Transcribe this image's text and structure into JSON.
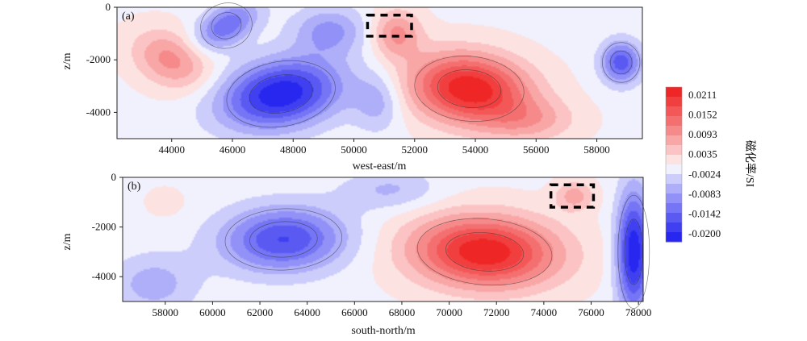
{
  "chart_data": [
    {
      "type": "heatmap",
      "panel_label": "(a)",
      "xlabel": "west-east/m",
      "ylabel": "z/m",
      "xlim": [
        42200,
        59500
      ],
      "ylim": [
        -5000,
        0
      ],
      "x_ticks": [
        "44000",
        "46000",
        "48000",
        "50000",
        "52000",
        "54000",
        "56000",
        "58000"
      ],
      "y_ticks": [
        "0",
        "-2000",
        "-4000"
      ],
      "anomalies": [
        {
          "x": 47600,
          "z": -3300,
          "value": -0.02,
          "sx": 1900,
          "sz": 1300,
          "tilt": 0.55
        },
        {
          "x": 45800,
          "z": -700,
          "value": -0.012,
          "sx": 900,
          "sz": 900,
          "tilt": 0.9
        },
        {
          "x": 49200,
          "z": -900,
          "value": -0.008,
          "sx": 1200,
          "sz": 900,
          "tilt": 0.0
        },
        {
          "x": 50800,
          "z": -3600,
          "value": -0.006,
          "sx": 800,
          "sz": 1100,
          "tilt": 0.0
        },
        {
          "x": 58800,
          "z": -2100,
          "value": -0.014,
          "sx": 650,
          "sz": 800,
          "tilt": 0.0
        },
        {
          "x": 53800,
          "z": -3100,
          "value": 0.0211,
          "sx": 1900,
          "sz": 1300,
          "tilt": -0.3
        },
        {
          "x": 51400,
          "z": -1000,
          "value": 0.009,
          "sx": 800,
          "sz": 900,
          "tilt": 0.0
        },
        {
          "x": 44000,
          "z": -2000,
          "value": 0.0095,
          "sx": 1200,
          "sz": 1100,
          "tilt": -0.5
        },
        {
          "x": 55800,
          "z": -4300,
          "value": 0.006,
          "sx": 1500,
          "sz": 800,
          "tilt": 0.0
        }
      ],
      "highlight_box": {
        "x": [
          50450,
          51900
        ],
        "z": [
          -1100,
          -300
        ]
      }
    },
    {
      "type": "heatmap",
      "panel_label": "(b)",
      "xlabel": "south-north/m",
      "ylabel": "z/m",
      "xlim": [
        56200,
        78200
      ],
      "ylim": [
        -5000,
        0
      ],
      "x_ticks": [
        "58000",
        "60000",
        "62000",
        "64000",
        "66000",
        "68000",
        "70000",
        "72000",
        "74000",
        "76000",
        "78000"
      ],
      "y_ticks": [
        "0",
        "-2000",
        "-4000"
      ],
      "anomalies": [
        {
          "x": 63000,
          "z": -2500,
          "value": -0.015,
          "sx": 2600,
          "sz": 1300,
          "tilt": 0.15
        },
        {
          "x": 57500,
          "z": -4300,
          "value": -0.006,
          "sx": 1800,
          "sz": 1200,
          "tilt": 0.0
        },
        {
          "x": 67500,
          "z": -500,
          "value": -0.005,
          "sx": 2000,
          "sz": 800,
          "tilt": 0.0
        },
        {
          "x": 77800,
          "z": -3000,
          "value": -0.02,
          "sx": 700,
          "sz": 2400,
          "tilt": 0.0
        },
        {
          "x": 71500,
          "z": -3000,
          "value": 0.0211,
          "sx": 3000,
          "sz": 1400,
          "tilt": -0.25
        },
        {
          "x": 75300,
          "z": -750,
          "value": 0.007,
          "sx": 800,
          "sz": 600,
          "tilt": 0.0
        },
        {
          "x": 58000,
          "z": -1000,
          "value": 0.003,
          "sx": 700,
          "sz": 500,
          "tilt": 0.0
        }
      ],
      "highlight_box": {
        "x": [
          74300,
          76100
        ],
        "z": [
          -1200,
          -300
        ]
      }
    }
  ],
  "colorbar": {
    "title": "磁化率/SI",
    "labels": [
      "0.0211",
      "0.0152",
      "0.0093",
      "0.0035",
      "-0.0024",
      "-0.0083",
      "-0.0142",
      "-0.0200"
    ],
    "min": -0.02,
    "max": 0.0211,
    "colors": {
      "negative_end": "#1a1aee",
      "neutral": "#ffffff",
      "positive_end": "#ee1a1a"
    }
  }
}
